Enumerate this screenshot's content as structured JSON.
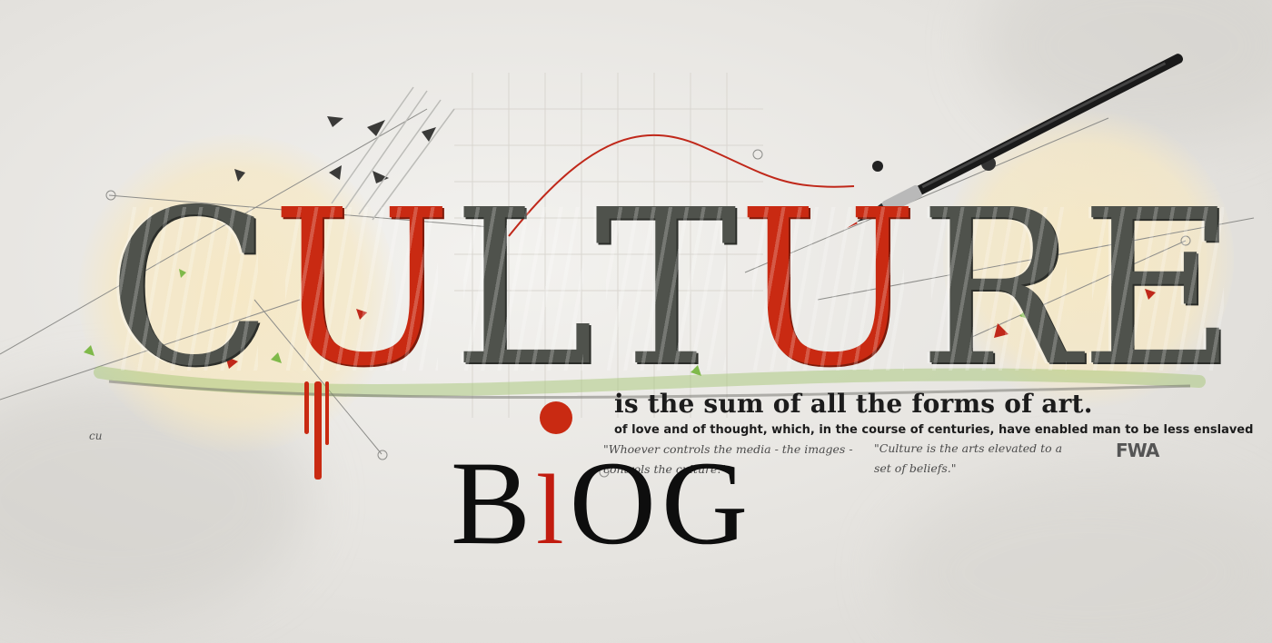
{
  "header": {
    "title_letters": [
      "C",
      "U",
      "L",
      "T",
      "U",
      "R",
      "E"
    ],
    "tagline": "is the sum of all the forms of art.",
    "subline": "of love and of thought, which, in the course of centuries, have enabled man to be less enslaved",
    "quote_left_line1": "\"Whoever controls the media - the images -",
    "quote_left_line2": "controls the culture.\"",
    "quote_right_line1": "\"Culture is the arts elevated to a",
    "quote_right_line2": "set of beliefs.\"",
    "signature": "FWA"
  },
  "blog": {
    "b": "B",
    "l": "l",
    "og": "OG"
  },
  "colors": {
    "red": "#c92a12",
    "dark": "#4f524c",
    "text": "#1c1c1c"
  }
}
